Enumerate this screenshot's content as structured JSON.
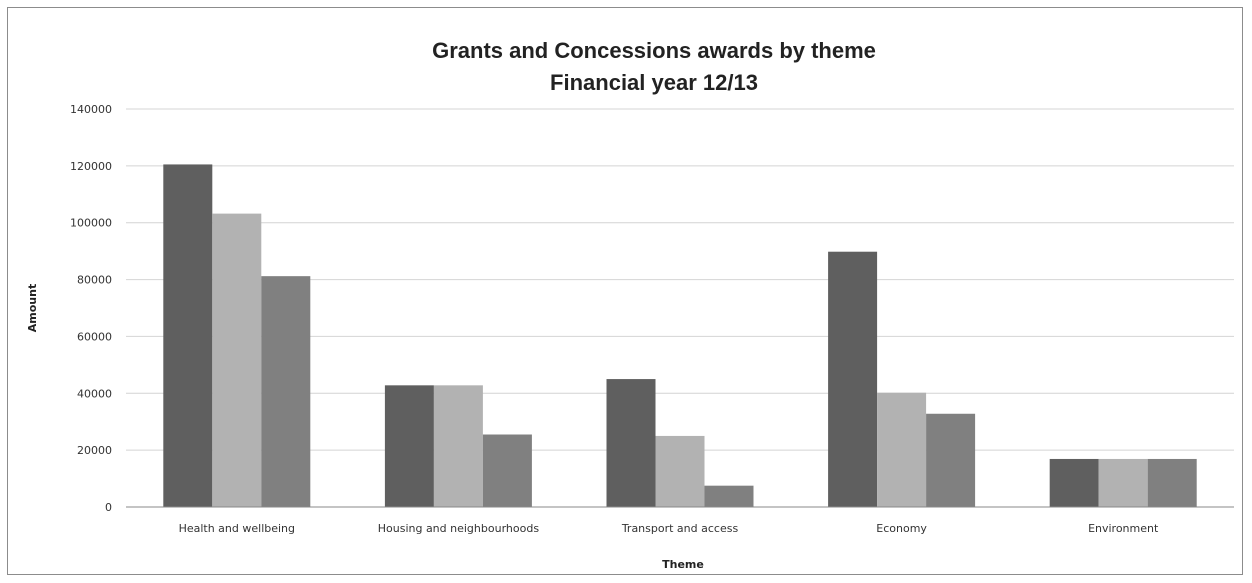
{
  "chart_data": {
    "type": "bar",
    "title_lines": [
      "Grants and Concessions awards by theme",
      "Financial year 12/13"
    ],
    "xlabel": "Theme",
    "ylabel": "Amount",
    "ylim": [
      0,
      140000
    ],
    "ytick_step": 20000,
    "yticks": [
      "0",
      "20000",
      "40000",
      "60000",
      "80000",
      "100000",
      "120000",
      "140000"
    ],
    "grid": true,
    "legend": "none",
    "categories": [
      "Health and wellbeing",
      "Housing and neighbourhoods",
      "Transport and access",
      "Economy",
      "Environment"
    ],
    "series": [
      {
        "values": [
          120500,
          42800,
          45000,
          89800,
          16900
        ],
        "color": "#5f5f5f"
      },
      {
        "values": [
          103200,
          42800,
          25000,
          40200,
          16900
        ],
        "color": "#b2b2b2"
      },
      {
        "values": [
          81200,
          25500,
          7500,
          32800,
          16900
        ],
        "color": "#808080"
      }
    ]
  }
}
